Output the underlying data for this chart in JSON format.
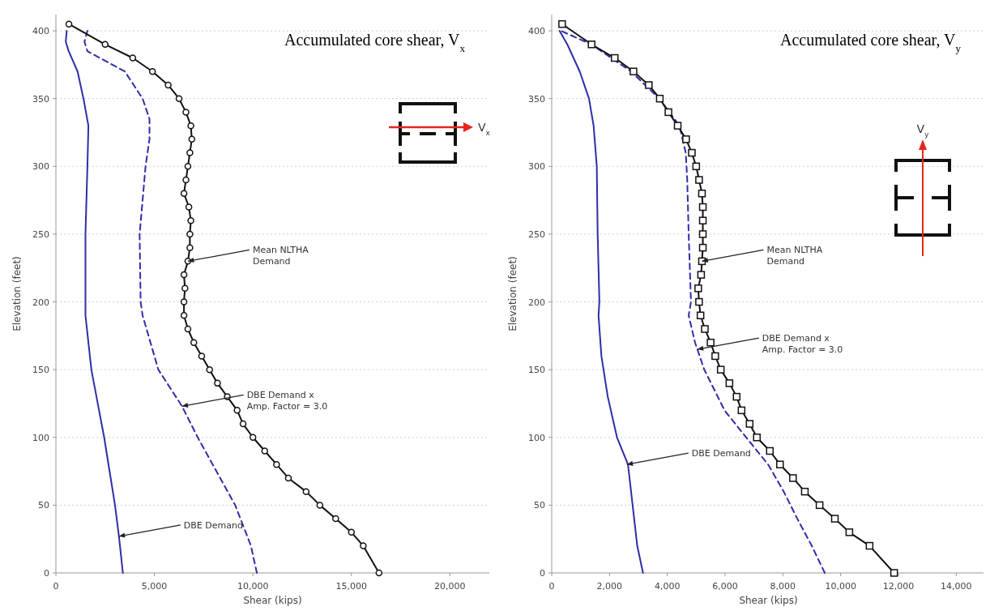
{
  "chart_data": [
    {
      "type": "line",
      "title": "Accumulated core shear, V$_{x}$",
      "xlabel": "Shear (kips)",
      "ylabel": "Elevation (feet)",
      "xlim": [
        0,
        22000
      ],
      "xticks": [
        0,
        {
          "value": 5000,
          "label": "5,000"
        },
        {
          "value": 10000,
          "label": "10,000"
        },
        {
          "value": 15000,
          "label": "15,000"
        },
        {
          "value": 20000,
          "label": "20,000"
        }
      ],
      "ylim": [
        0,
        412
      ],
      "yticks": [
        0,
        50,
        100,
        150,
        200,
        250,
        300,
        350,
        400
      ],
      "grid": "y",
      "series": [
        {
          "color": "#2e2ea8",
          "line_style": "solid",
          "marker": "none",
          "x": [
            3400,
            3200,
            3000,
            2450,
            1800,
            1500,
            1500,
            1600,
            1650,
            1400,
            1100,
            650,
            500,
            550
          ],
          "values": [
            0,
            27,
            50,
            100,
            150,
            190,
            250,
            300,
            330,
            350,
            370,
            385,
            392,
            400
          ]
        },
        {
          "color": "#2e2ea8",
          "line_style": "dashed",
          "marker": "none",
          "x": [
            10200,
            9900,
            9100,
            7200,
            6400,
            5200,
            4400,
            4300,
            4250,
            4550,
            4750,
            4750,
            4400,
            3500,
            1600,
            1450,
            1600
          ],
          "values": [
            0,
            20,
            50,
            100,
            123,
            150,
            190,
            200,
            250,
            300,
            320,
            335,
            350,
            370,
            385,
            392,
            400
          ]
        },
        {
          "color": "#111111",
          "line_style": "solid",
          "marker": "circle",
          "x": [
            16400,
            15600,
            15000,
            14200,
            13400,
            12700,
            11800,
            11200,
            10600,
            10000,
            9500,
            9200,
            8700,
            8200,
            7800,
            7400,
            7000,
            6700,
            6500,
            6500,
            6550,
            6500,
            6700,
            6800,
            6800,
            6850,
            6750,
            6500,
            6600,
            6700,
            6800,
            6900,
            6850,
            6600,
            6250,
            5700,
            4900,
            3900,
            2500,
            660
          ],
          "values": [
            0,
            20,
            30,
            40,
            50,
            60,
            70,
            80,
            90,
            100,
            110,
            120,
            130,
            140,
            150,
            160,
            170,
            180,
            190,
            200,
            210,
            220,
            230,
            240,
            250,
            260,
            270,
            280,
            290,
            300,
            310,
            320,
            330,
            340,
            350,
            360,
            370,
            380,
            390,
            405
          ]
        }
      ],
      "annotations": [
        {
          "text": "Mean NLTHA\nDemand",
          "x": 6700,
          "y": 230
        },
        {
          "text": "DBE Demand x\nAmp. Factor = 3.0",
          "x": 6400,
          "y": 123
        },
        {
          "text": "DBE Demand",
          "x": 3200,
          "y": 27
        },
        "V$_{x}$"
      ]
    },
    {
      "type": "line",
      "title": "Accumulated core shear, V$_{y}$",
      "xlabel": "Shear (kips)",
      "ylabel": "Elevation (feet)",
      "xlim": [
        0,
        15000
      ],
      "xticks": [
        0,
        {
          "value": 2000,
          "label": "2,000"
        },
        {
          "value": 4000,
          "label": "4,000"
        },
        {
          "value": 6000,
          "label": "6,000"
        },
        {
          "value": 8000,
          "label": "8,000"
        },
        {
          "value": 10000,
          "label": "10,000"
        },
        {
          "value": 12000,
          "label": "12,000"
        },
        {
          "value": 14000,
          "label": "14,000"
        }
      ],
      "ylim": [
        0,
        412
      ],
      "yticks": [
        0,
        50,
        100,
        150,
        200,
        250,
        300,
        350,
        400
      ],
      "grid": "y",
      "series": [
        {
          "color": "#2e2ea8",
          "line_style": "solid",
          "marker": "none",
          "x": [
            3160,
            2960,
            2800,
            2640,
            2260,
            1940,
            1720,
            1620,
            1650,
            1590,
            1560,
            1450,
            1290,
            970,
            540,
            270
          ],
          "values": [
            0,
            20,
            50,
            80,
            100,
            130,
            160,
            190,
            200,
            250,
            300,
            330,
            350,
            370,
            390,
            400
          ]
        },
        {
          "color": "#2e2ea8",
          "line_style": "dashed",
          "marker": "none",
          "x": [
            9450,
            9000,
            8500,
            8030,
            7490,
            6730,
            5980,
            5280,
            4960,
            4740,
            4820,
            4740,
            4690,
            4640,
            4420,
            3720,
            2750,
            1370,
            320
          ],
          "values": [
            0,
            20,
            40,
            60,
            80,
            100,
            120,
            150,
            170,
            190,
            200,
            250,
            290,
            310,
            330,
            350,
            370,
            390,
            400
          ]
        },
        {
          "color": "#111111",
          "line_style": "solid",
          "marker": "square",
          "x": [
            11850,
            11000,
            10300,
            9800,
            9270,
            8760,
            8350,
            7900,
            7550,
            7100,
            6850,
            6570,
            6400,
            6150,
            5850,
            5660,
            5500,
            5300,
            5150,
            5100,
            5070,
            5170,
            5200,
            5230,
            5230,
            5230,
            5230,
            5200,
            5100,
            5000,
            4850,
            4650,
            4360,
            4040,
            3740,
            3360,
            2830,
            2180,
            1380,
            360
          ],
          "values": [
            0,
            20,
            30,
            40,
            50,
            60,
            70,
            80,
            90,
            100,
            110,
            120,
            130,
            140,
            150,
            160,
            170,
            180,
            190,
            200,
            210,
            220,
            230,
            240,
            250,
            260,
            270,
            280,
            290,
            300,
            310,
            320,
            330,
            340,
            350,
            360,
            370,
            380,
            390,
            405
          ]
        }
      ],
      "annotations": [
        {
          "text": "Mean NLTHA\nDemand",
          "x": 5200,
          "y": 230
        },
        {
          "text": "DBE Demand x\nAmp. Factor = 3.0",
          "x": 5040,
          "y": 165
        },
        {
          "text": "DBE Demand",
          "x": 2600,
          "y": 80
        },
        "V$_{y}$"
      ]
    }
  ]
}
